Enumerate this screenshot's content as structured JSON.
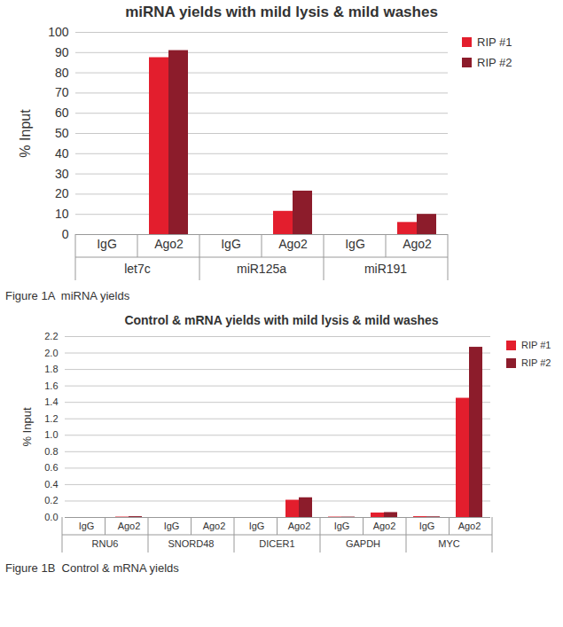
{
  "chart_data": [
    {
      "type": "bar",
      "title": "miRNA yields with mild lysis & mild washes",
      "caption": "Figure 1A  miRNA yields",
      "y_label": "% Input",
      "groups": [
        "let7c",
        "let7c",
        "miR125a",
        "miR125a",
        "miR191",
        "miR191"
      ],
      "categories": [
        "IgG",
        "Ago2",
        "IgG",
        "Ago2",
        "IgG",
        "Ago2"
      ],
      "series": [
        {
          "name": "RIP #1",
          "color": "#e31e2d",
          "values": [
            0,
            87.5,
            0,
            11.5,
            0,
            6
          ]
        },
        {
          "name": "RIP #2",
          "color": "#8c1c2b",
          "values": [
            0,
            91,
            0,
            21.5,
            0,
            10
          ]
        }
      ],
      "ylim": [
        0,
        100
      ],
      "yticks": [
        0,
        10,
        20,
        30,
        40,
        50,
        60,
        70,
        80,
        90,
        100
      ],
      "grid": true,
      "legend": "right"
    },
    {
      "type": "bar",
      "title": "Control & mRNA yields with mild lysis & mild washes",
      "caption": "Figure 1B  Control & mRNA yields",
      "y_label": "% Input",
      "groups": [
        "RNU6",
        "RNU6",
        "SNORD48",
        "SNORD48",
        "DICER1",
        "DICER1",
        "GAPDH",
        "GAPDH",
        "MYC",
        "MYC"
      ],
      "categories": [
        "IgG",
        "Ago2",
        "IgG",
        "Ago2",
        "IgG",
        "Ago2",
        "IgG",
        "Ago2",
        "IgG",
        "Ago2"
      ],
      "series": [
        {
          "name": "RIP #1",
          "color": "#e31e2d",
          "values": [
            0,
            0.005,
            0,
            0,
            0,
            0.21,
            0.005,
            0.055,
            0.01,
            1.45
          ]
        },
        {
          "name": "RIP #2",
          "color": "#8c1c2b",
          "values": [
            0,
            0.01,
            0,
            0,
            0,
            0.24,
            0.005,
            0.06,
            0.008,
            2.07
          ]
        }
      ],
      "ylim": [
        0,
        2.2
      ],
      "yticks": [
        {
          "value": 0,
          "label": "0.0"
        },
        0.2,
        0.4,
        0.6,
        0.8,
        {
          "value": 1,
          "label": "1.0"
        },
        1.2,
        1.4,
        1.6,
        1.8,
        {
          "value": 2,
          "label": "2.0"
        },
        2.2
      ],
      "grid": true,
      "legend": "right"
    }
  ]
}
